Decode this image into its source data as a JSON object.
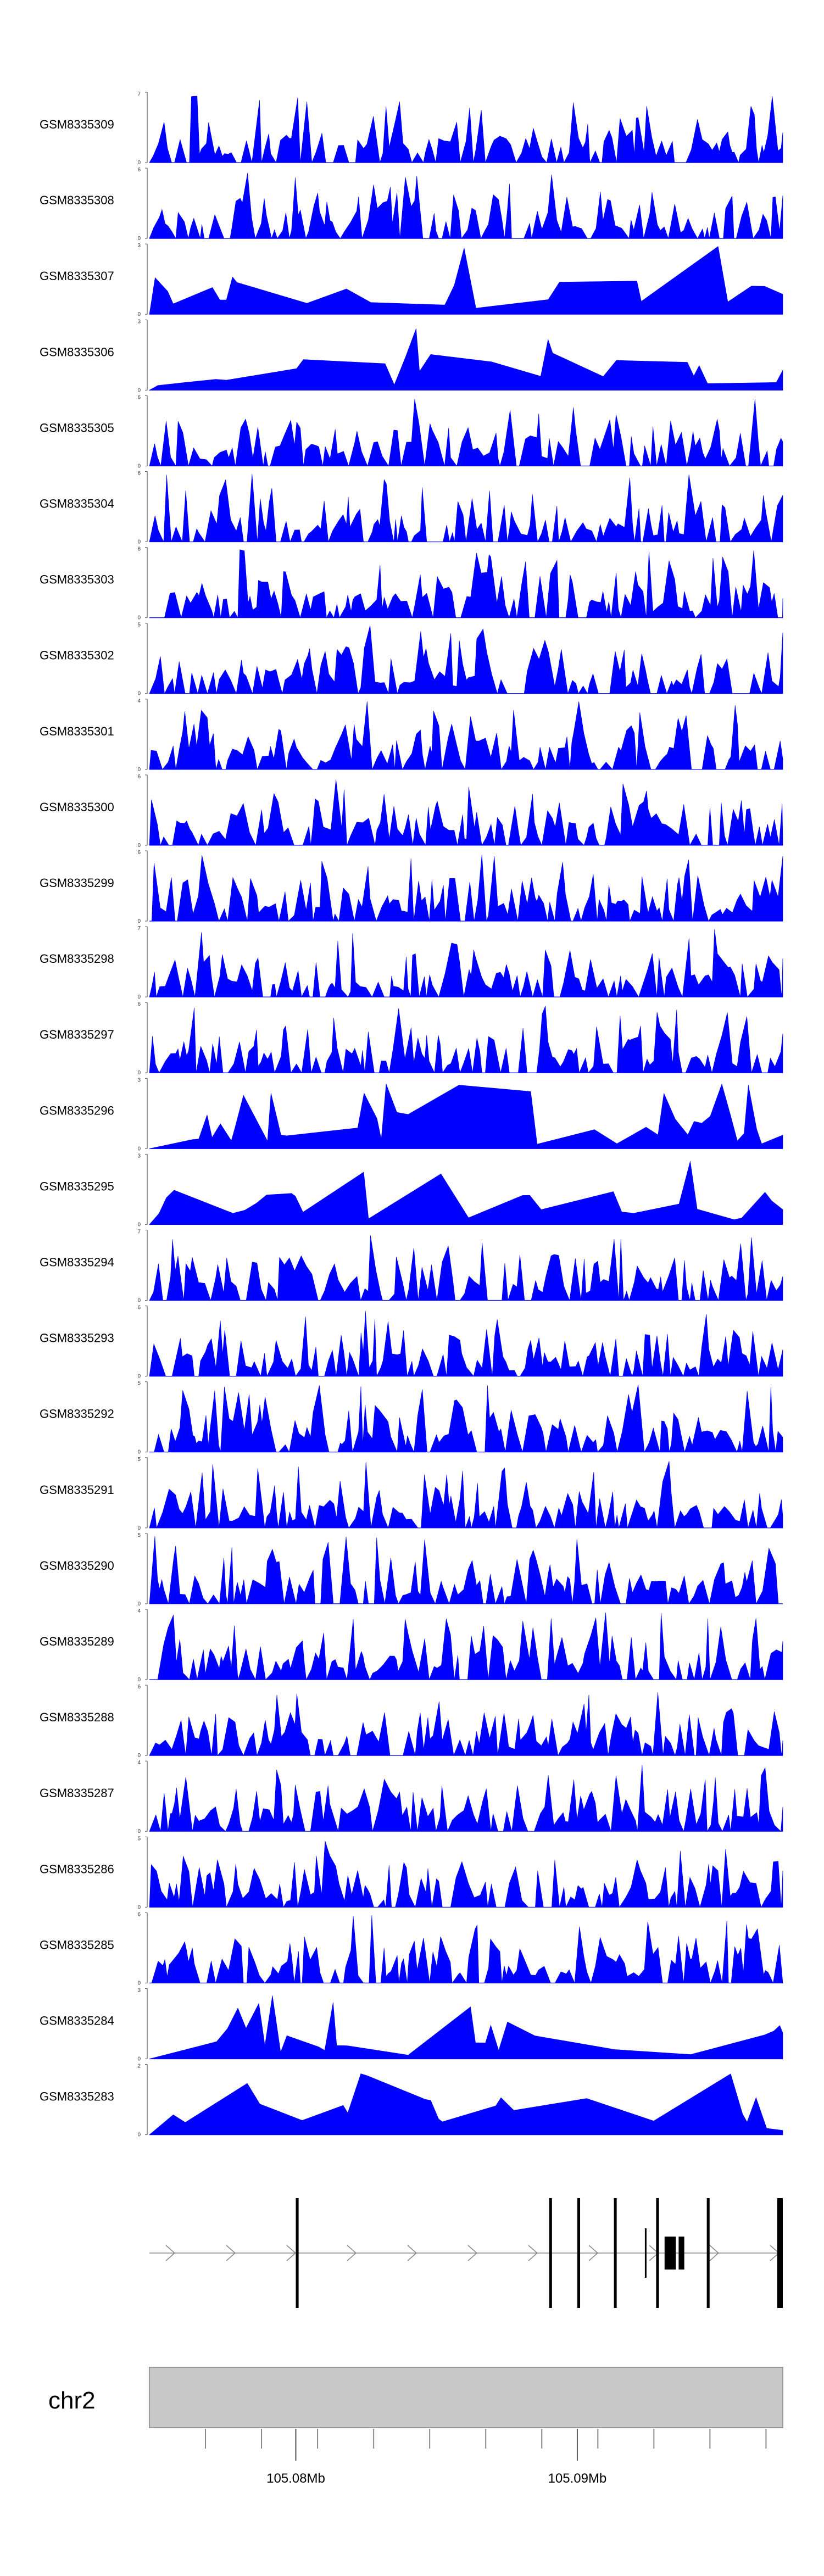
{
  "chart_data": {
    "type": "area",
    "genome": "chr2",
    "x_range_mb": [
      105.0748,
      105.0973
    ],
    "axis_ticks_mb": [
      105.08,
      105.09
    ],
    "axis_tick_labels": [
      "105.08Mb",
      "105.09Mb"
    ],
    "fill_color": "#0000FF",
    "tracks": [
      {
        "name": "GSM8335309",
        "ymax": 7,
        "ymin": 0
      },
      {
        "name": "GSM8335308",
        "ymax": 6,
        "ymin": 0
      },
      {
        "name": "GSM8335307",
        "ymax": 3,
        "ymin": 0
      },
      {
        "name": "GSM8335306",
        "ymax": 3,
        "ymin": 0
      },
      {
        "name": "GSM8335305",
        "ymax": 6,
        "ymin": 0
      },
      {
        "name": "GSM8335304",
        "ymax": 6,
        "ymin": 0
      },
      {
        "name": "GSM8335303",
        "ymax": 6,
        "ymin": 0
      },
      {
        "name": "GSM8335302",
        "ymax": 5,
        "ymin": 0
      },
      {
        "name": "GSM8335301",
        "ymax": 4,
        "ymin": 0
      },
      {
        "name": "GSM8335300",
        "ymax": 6,
        "ymin": 0
      },
      {
        "name": "GSM8335299",
        "ymax": 6,
        "ymin": 0
      },
      {
        "name": "GSM8335298",
        "ymax": 7,
        "ymin": 0
      },
      {
        "name": "GSM8335297",
        "ymax": 6,
        "ymin": 0
      },
      {
        "name": "GSM8335296",
        "ymax": 3,
        "ymin": 0
      },
      {
        "name": "GSM8335295",
        "ymax": 3,
        "ymin": 0
      },
      {
        "name": "GSM8335294",
        "ymax": 7,
        "ymin": 0
      },
      {
        "name": "GSM8335293",
        "ymax": 6,
        "ymin": 0
      },
      {
        "name": "GSM8335292",
        "ymax": 5,
        "ymin": 0
      },
      {
        "name": "GSM8335291",
        "ymax": 5,
        "ymin": 0
      },
      {
        "name": "GSM8335290",
        "ymax": 5,
        "ymin": 0
      },
      {
        "name": "GSM8335289",
        "ymax": 4,
        "ymin": 0
      },
      {
        "name": "GSM8335288",
        "ymax": 6,
        "ymin": 0
      },
      {
        "name": "GSM8335287",
        "ymax": 4,
        "ymin": 0
      },
      {
        "name": "GSM8335286",
        "ymax": 5,
        "ymin": 0
      },
      {
        "name": "GSM8335285",
        "ymax": 6,
        "ymin": 0
      },
      {
        "name": "GSM8335284",
        "ymax": 3,
        "ymin": 0
      },
      {
        "name": "GSM8335283",
        "ymax": 2,
        "ymin": 0
      }
    ],
    "gene_model": {
      "strand": "+",
      "exons_mb": [
        [
          105.08,
          105.0801
        ],
        [
          105.089,
          105.0891
        ],
        [
          105.09,
          105.0901
        ],
        [
          105.0913,
          105.0914
        ],
        [
          105.0928,
          105.0929
        ],
        [
          105.0931,
          105.0935
        ],
        [
          105.0936,
          105.0938
        ],
        [
          105.0946,
          105.0947
        ],
        [
          105.0971,
          105.0973
        ]
      ],
      "thin_feature_mb": [
        105.0924,
        105.0925
      ]
    }
  }
}
